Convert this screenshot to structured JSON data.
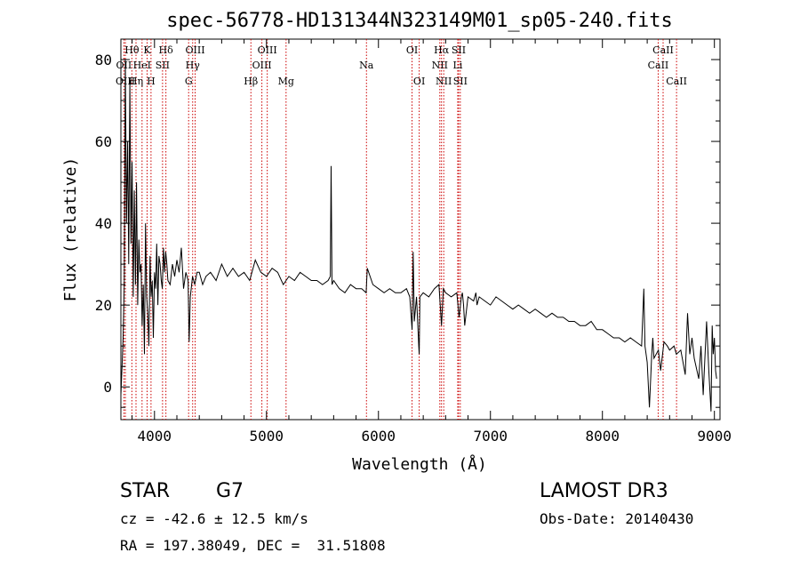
{
  "chart_data": {
    "type": "line",
    "title": "spec-56778-HD131344N323149M01_sp05-240.fits",
    "xlabel": "Wavelength (Å)",
    "ylabel": "Flux (relative)",
    "xlim": [
      3700,
      9050
    ],
    "ylim": [
      -8,
      85
    ],
    "xticks": [
      4000,
      5000,
      6000,
      7000,
      8000,
      9000
    ],
    "yticks": [
      0,
      20,
      40,
      60,
      80
    ],
    "line_color": "#cc0000",
    "lines": [
      {
        "label": "Hθ",
        "wave": 3798,
        "row": 0
      },
      {
        "label": "OII",
        "wave": 3727,
        "row": 1
      },
      {
        "label": "OIII",
        "wave": 3740,
        "row": 2
      },
      {
        "label": "K",
        "wave": 3934,
        "row": 0
      },
      {
        "label": "HeI",
        "wave": 3889,
        "row": 1
      },
      {
        "label": "Hη",
        "wave": 3835,
        "row": 2
      },
      {
        "label": "Hδ",
        "wave": 4102,
        "row": 0
      },
      {
        "label": "SII",
        "wave": 4072,
        "row": 1
      },
      {
        "label": "H",
        "wave": 3969,
        "row": 2
      },
      {
        "label": "OIII",
        "wave": 4363,
        "row": 0
      },
      {
        "label": "Hγ",
        "wave": 4341,
        "row": 1
      },
      {
        "label": "G",
        "wave": 4305,
        "row": 2
      },
      {
        "label": "OIII",
        "wave": 5007,
        "row": 0
      },
      {
        "label": "OIII",
        "wave": 4959,
        "row": 1
      },
      {
        "label": "Hβ",
        "wave": 4861,
        "row": 2
      },
      {
        "label": "Mg",
        "wave": 5175,
        "row": 2
      },
      {
        "label": "Na",
        "wave": 5893,
        "row": 1
      },
      {
        "label": "OI",
        "wave": 6300,
        "row": 0
      },
      {
        "label": "OI",
        "wave": 6364,
        "row": 2
      },
      {
        "label": "Hα",
        "wave": 6563,
        "row": 0
      },
      {
        "label": "SII",
        "wave": 6716,
        "row": 0
      },
      {
        "label": "NII",
        "wave": 6548,
        "row": 1
      },
      {
        "label": "Li",
        "wave": 6708,
        "row": 1
      },
      {
        "label": "NII",
        "wave": 6583,
        "row": 2
      },
      {
        "label": "SII",
        "wave": 6731,
        "row": 2
      },
      {
        "label": "CaII",
        "wave": 8542,
        "row": 0
      },
      {
        "label": "CaII",
        "wave": 8498,
        "row": 1
      },
      {
        "label": "CaII",
        "wave": 8662,
        "row": 2
      }
    ],
    "series": [
      {
        "name": "flux",
        "x": [
          3700,
          3710,
          3720,
          3730,
          3740,
          3750,
          3760,
          3770,
          3780,
          3790,
          3800,
          3810,
          3820,
          3830,
          3840,
          3850,
          3860,
          3870,
          3880,
          3890,
          3900,
          3910,
          3920,
          3930,
          3940,
          3950,
          3960,
          3970,
          3980,
          3990,
          4000,
          4010,
          4020,
          4030,
          4040,
          4050,
          4060,
          4070,
          4080,
          4090,
          4100,
          4110,
          4120,
          4140,
          4160,
          4180,
          4200,
          4220,
          4240,
          4260,
          4280,
          4300,
          4310,
          4320,
          4340,
          4360,
          4380,
          4400,
          4430,
          4460,
          4500,
          4550,
          4600,
          4650,
          4700,
          4750,
          4800,
          4850,
          4880,
          4900,
          4950,
          5000,
          5050,
          5100,
          5150,
          5200,
          5250,
          5300,
          5350,
          5400,
          5450,
          5500,
          5550,
          5570,
          5577,
          5585,
          5600,
          5650,
          5700,
          5750,
          5800,
          5850,
          5890,
          5900,
          5950,
          6000,
          6050,
          6100,
          6150,
          6200,
          6250,
          6280,
          6290,
          6300,
          6310,
          6320,
          6340,
          6360,
          6364,
          6370,
          6400,
          6450,
          6500,
          6540,
          6563,
          6580,
          6600,
          6650,
          6700,
          6720,
          6740,
          6750,
          6760,
          6770,
          6800,
          6850,
          6870,
          6880,
          6900,
          6950,
          7000,
          7050,
          7100,
          7150,
          7200,
          7250,
          7300,
          7350,
          7400,
          7450,
          7500,
          7550,
          7600,
          7650,
          7700,
          7750,
          7800,
          7850,
          7900,
          7950,
          8000,
          8050,
          8100,
          8150,
          8200,
          8250,
          8300,
          8350,
          8370,
          8380,
          8400,
          8420,
          8440,
          8450,
          8460,
          8500,
          8520,
          8550,
          8580,
          8600,
          8640,
          8660,
          8700,
          8740,
          8760,
          8780,
          8800,
          8820,
          8860,
          8880,
          8900,
          8930,
          8950,
          8970,
          8980,
          8990,
          9000,
          9010,
          9020
        ],
        "y": [
          -2,
          5,
          12,
          25,
          80,
          40,
          60,
          30,
          75,
          35,
          55,
          22,
          48,
          25,
          50,
          20,
          36,
          28,
          30,
          15,
          25,
          8,
          40,
          22,
          18,
          10,
          32,
          22,
          26,
          12,
          28,
          24,
          35,
          20,
          32,
          30,
          26,
          24,
          34,
          28,
          33,
          30,
          26,
          25,
          30,
          27,
          31,
          28,
          34,
          24,
          28,
          26,
          11,
          22,
          27,
          25,
          28,
          28,
          25,
          27,
          28,
          26,
          30,
          27,
          29,
          27,
          28,
          26,
          29,
          31,
          28,
          27,
          29,
          28,
          25,
          27,
          26,
          28,
          27,
          26,
          26,
          25,
          26,
          27,
          54,
          25,
          26,
          24,
          23,
          25,
          24,
          24,
          23,
          29,
          25,
          24,
          23,
          24,
          23,
          23,
          24,
          22,
          18,
          14,
          33,
          16,
          22,
          10,
          8,
          22,
          23,
          22,
          24,
          25,
          15,
          24,
          23,
          22,
          23,
          17,
          22,
          23,
          20,
          15,
          22,
          21,
          23,
          20,
          22,
          21,
          20,
          22,
          21,
          20,
          19,
          20,
          19,
          18,
          19,
          18,
          17,
          18,
          17,
          17,
          16,
          16,
          15,
          15,
          16,
          14,
          14,
          13,
          12,
          12,
          11,
          12,
          11,
          10,
          24,
          10,
          6,
          -5,
          8,
          12,
          7,
          9,
          4,
          11,
          10,
          9,
          10,
          8,
          9,
          3,
          18,
          8,
          12,
          7,
          2,
          10,
          -2,
          16,
          4,
          -6,
          15,
          8,
          12,
          4,
          2
        ],
        "color": "#000000"
      }
    ]
  },
  "info": {
    "object_type": "STAR",
    "subclass": "G7",
    "survey": "LAMOST DR3",
    "cz": "cz = -42.6 ± 12.5 km/s",
    "obs_date": "Obs-Date: 20140430",
    "coords": "RA = 197.38049, DEC =  31.51808"
  }
}
